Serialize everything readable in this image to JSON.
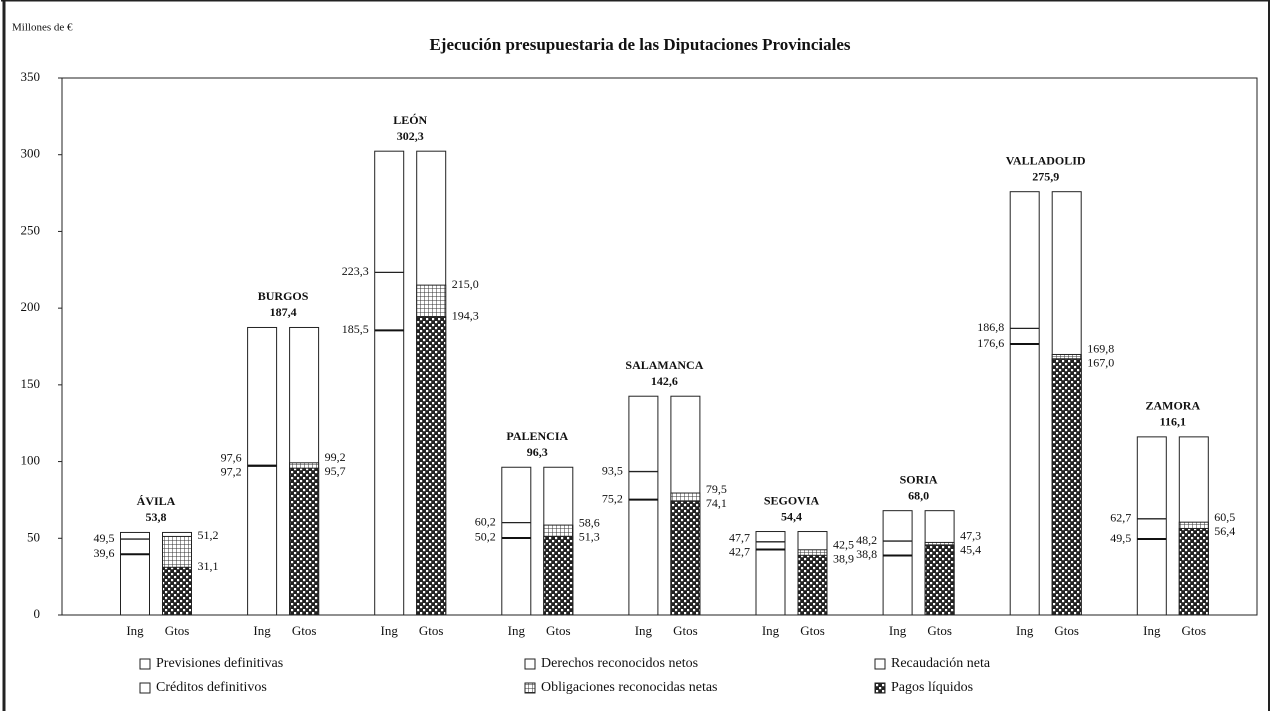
{
  "chart_data": {
    "type": "bar",
    "title": "Ejecución presupuestaria de las Diputaciones Provinciales",
    "y_label": "Millones de €",
    "categories": [
      "ÁVILA",
      "BURGOS",
      "LEÓN",
      "PALENCIA",
      "SALAMANCA",
      "SEGOVIA",
      "SORIA",
      "VALLADOLID",
      "ZAMORA"
    ],
    "bar_labels": [
      "Ing",
      "Gtos"
    ],
    "series": [
      {
        "name": "Previsiones definitivas",
        "values": [
          53.8,
          187.4,
          302.3,
          96.3,
          142.6,
          54.4,
          68.0,
          275.9,
          116.1
        ],
        "value_labels": [
          "53,8",
          "187,4",
          "302,3",
          "96,3",
          "142,6",
          "54,4",
          "68,0",
          "275,9",
          "116,1"
        ]
      },
      {
        "name": "Derechos reconocidos netos",
        "values": [
          49.5,
          97.6,
          223.3,
          60.2,
          93.5,
          47.7,
          48.2,
          186.8,
          62.7
        ],
        "value_labels": [
          "49,5",
          "97,6",
          "223,3",
          "60,2",
          "93,5",
          "47,7",
          "48,2",
          "186,8",
          "62,7"
        ]
      },
      {
        "name": "Recaudación neta",
        "values": [
          39.6,
          97.2,
          185.5,
          50.2,
          75.2,
          42.7,
          38.8,
          176.6,
          49.5
        ],
        "value_labels": [
          "39,6",
          "97,2",
          "185,5",
          "50,2",
          "75,2",
          "42,7",
          "38,8",
          "176,6",
          "49,5"
        ]
      },
      {
        "name": "Créditos definitivos",
        "values": [
          53.8,
          187.4,
          302.3,
          96.3,
          142.6,
          54.4,
          68.0,
          275.9,
          116.1
        ]
      },
      {
        "name": "Obligaciones reconocidas netas",
        "values": [
          51.2,
          99.2,
          215.0,
          58.6,
          79.5,
          42.5,
          47.3,
          169.8,
          60.5
        ],
        "value_labels": [
          "51,2",
          "99,2",
          "215,0",
          "58,6",
          "79,5",
          "42,5",
          "47,3",
          "169,8",
          "60,5"
        ]
      },
      {
        "name": "Pagos líquidos",
        "values": [
          31.1,
          95.7,
          194.3,
          51.3,
          74.1,
          38.9,
          45.4,
          167.0,
          56.4
        ],
        "value_labels": [
          "31,1",
          "95,7",
          "194,3",
          "51,3",
          "74,1",
          "38,9",
          "45,4",
          "167,0",
          "56,4"
        ]
      }
    ],
    "ylim": [
      0,
      350
    ],
    "yticks": [
      0,
      50,
      100,
      150,
      200,
      250,
      300,
      350
    ]
  }
}
